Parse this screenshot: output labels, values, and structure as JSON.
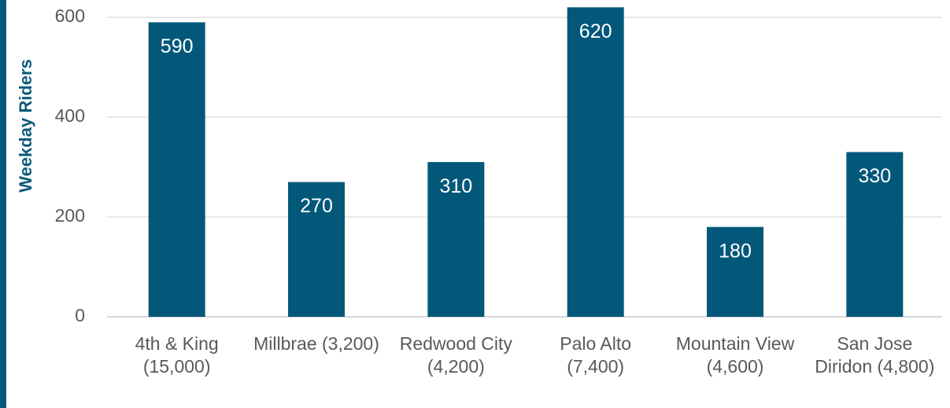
{
  "chart_data": {
    "type": "bar",
    "y_axis_label": "Weekday Riders",
    "categories": [
      "4th & King (15,000)",
      "Millbrae (3,200)",
      "Redwood City (4,200)",
      "Palo Alto (7,400)",
      "Mountain View (4,600)",
      "San Jose Diridon (4,800)"
    ],
    "values": [
      590,
      270,
      310,
      620,
      180,
      330
    ],
    "color": "#03587a",
    "ylim": [
      0,
      620
    ],
    "yticks": [
      0,
      200,
      400,
      600
    ],
    "grid": true
  }
}
